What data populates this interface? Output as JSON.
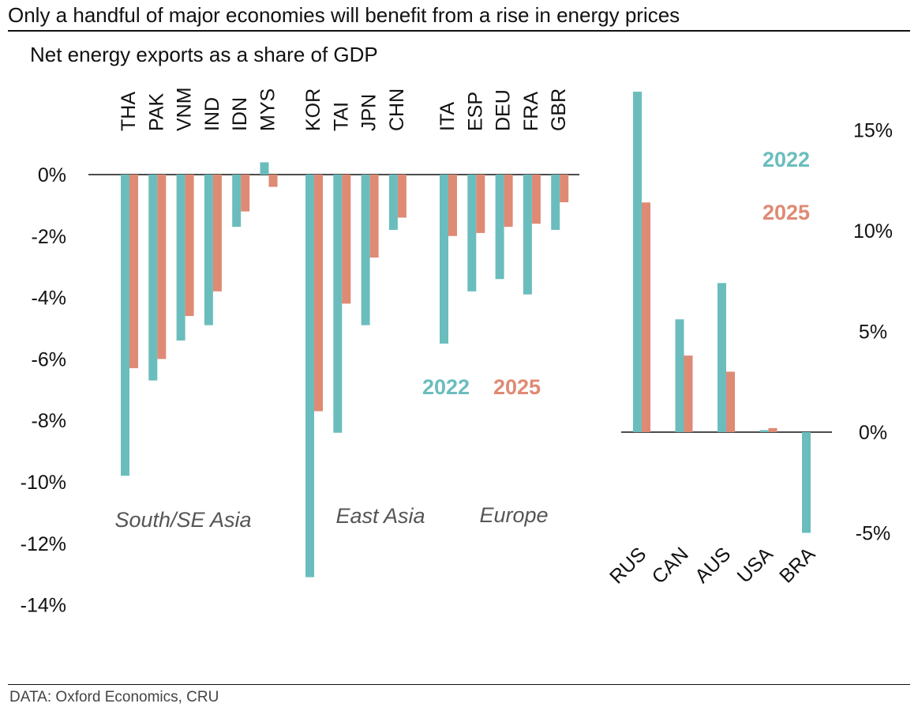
{
  "title": "Only a handful of major economies will benefit from a rise in energy prices",
  "subtitle": "Net energy exports as a share of GDP",
  "source": "DATA: Oxford Economics, CRU",
  "colors": {
    "s2022": "#6bbdbd",
    "s2025": "#df8a74",
    "axis": "#111111",
    "group_label": "#555555"
  },
  "chart_data": [
    {
      "type": "bar",
      "categories": [
        "THA",
        "PAK",
        "VNM",
        "IND",
        "IDN",
        "MYS",
        "KOR",
        "TAI",
        "JPN",
        "CHN",
        "ITA",
        "ESP",
        "DEU",
        "FRA",
        "GBR"
      ],
      "groups": [
        {
          "label": "South/SE Asia",
          "start": 0,
          "end": 5
        },
        {
          "label": "East Asia",
          "start": 6,
          "end": 9
        },
        {
          "label": "Europe",
          "start": 10,
          "end": 14
        }
      ],
      "series": [
        {
          "name": "2022",
          "values": [
            -9.8,
            -6.7,
            -5.4,
            -4.9,
            -1.7,
            0.4,
            -13.1,
            -8.4,
            -4.9,
            -1.8,
            -5.5,
            -3.8,
            -3.4,
            -3.9,
            -1.8
          ]
        },
        {
          "name": "2025",
          "values": [
            -6.3,
            -6.0,
            -4.6,
            -3.8,
            -1.2,
            -0.4,
            -7.7,
            -4.2,
            -2.7,
            -1.4,
            -2.0,
            -1.9,
            -1.7,
            -1.6,
            -0.9
          ]
        }
      ],
      "ylim": [
        -16,
        1
      ],
      "yticks": [
        0,
        -2,
        -4,
        -6,
        -8,
        -10,
        -12,
        -14
      ],
      "ytick_labels": [
        "0%",
        "-2%",
        "-4%",
        "-6%",
        "-8%",
        "-10%",
        "-12%",
        "-14%"
      ],
      "legend": [
        "2022",
        "2025"
      ],
      "legend_position": "lower-middle",
      "grid": false
    },
    {
      "type": "bar",
      "categories": [
        "RUS",
        "CAN",
        "AUS",
        "USA",
        "BRA"
      ],
      "series": [
        {
          "name": "2022",
          "values": [
            16.9,
            5.6,
            7.4,
            0.1,
            -5.0
          ]
        },
        {
          "name": "2025",
          "values": [
            11.4,
            3.8,
            3.0,
            0.2,
            0.0
          ]
        }
      ],
      "ylim": [
        -7,
        17
      ],
      "yticks": [
        15,
        10,
        5,
        0,
        -5
      ],
      "ytick_labels": [
        "15%",
        "10%",
        "5%",
        "0%",
        "-5%"
      ],
      "legend": [
        "2022",
        "2025"
      ],
      "legend_position": "top-right",
      "grid": false
    }
  ]
}
